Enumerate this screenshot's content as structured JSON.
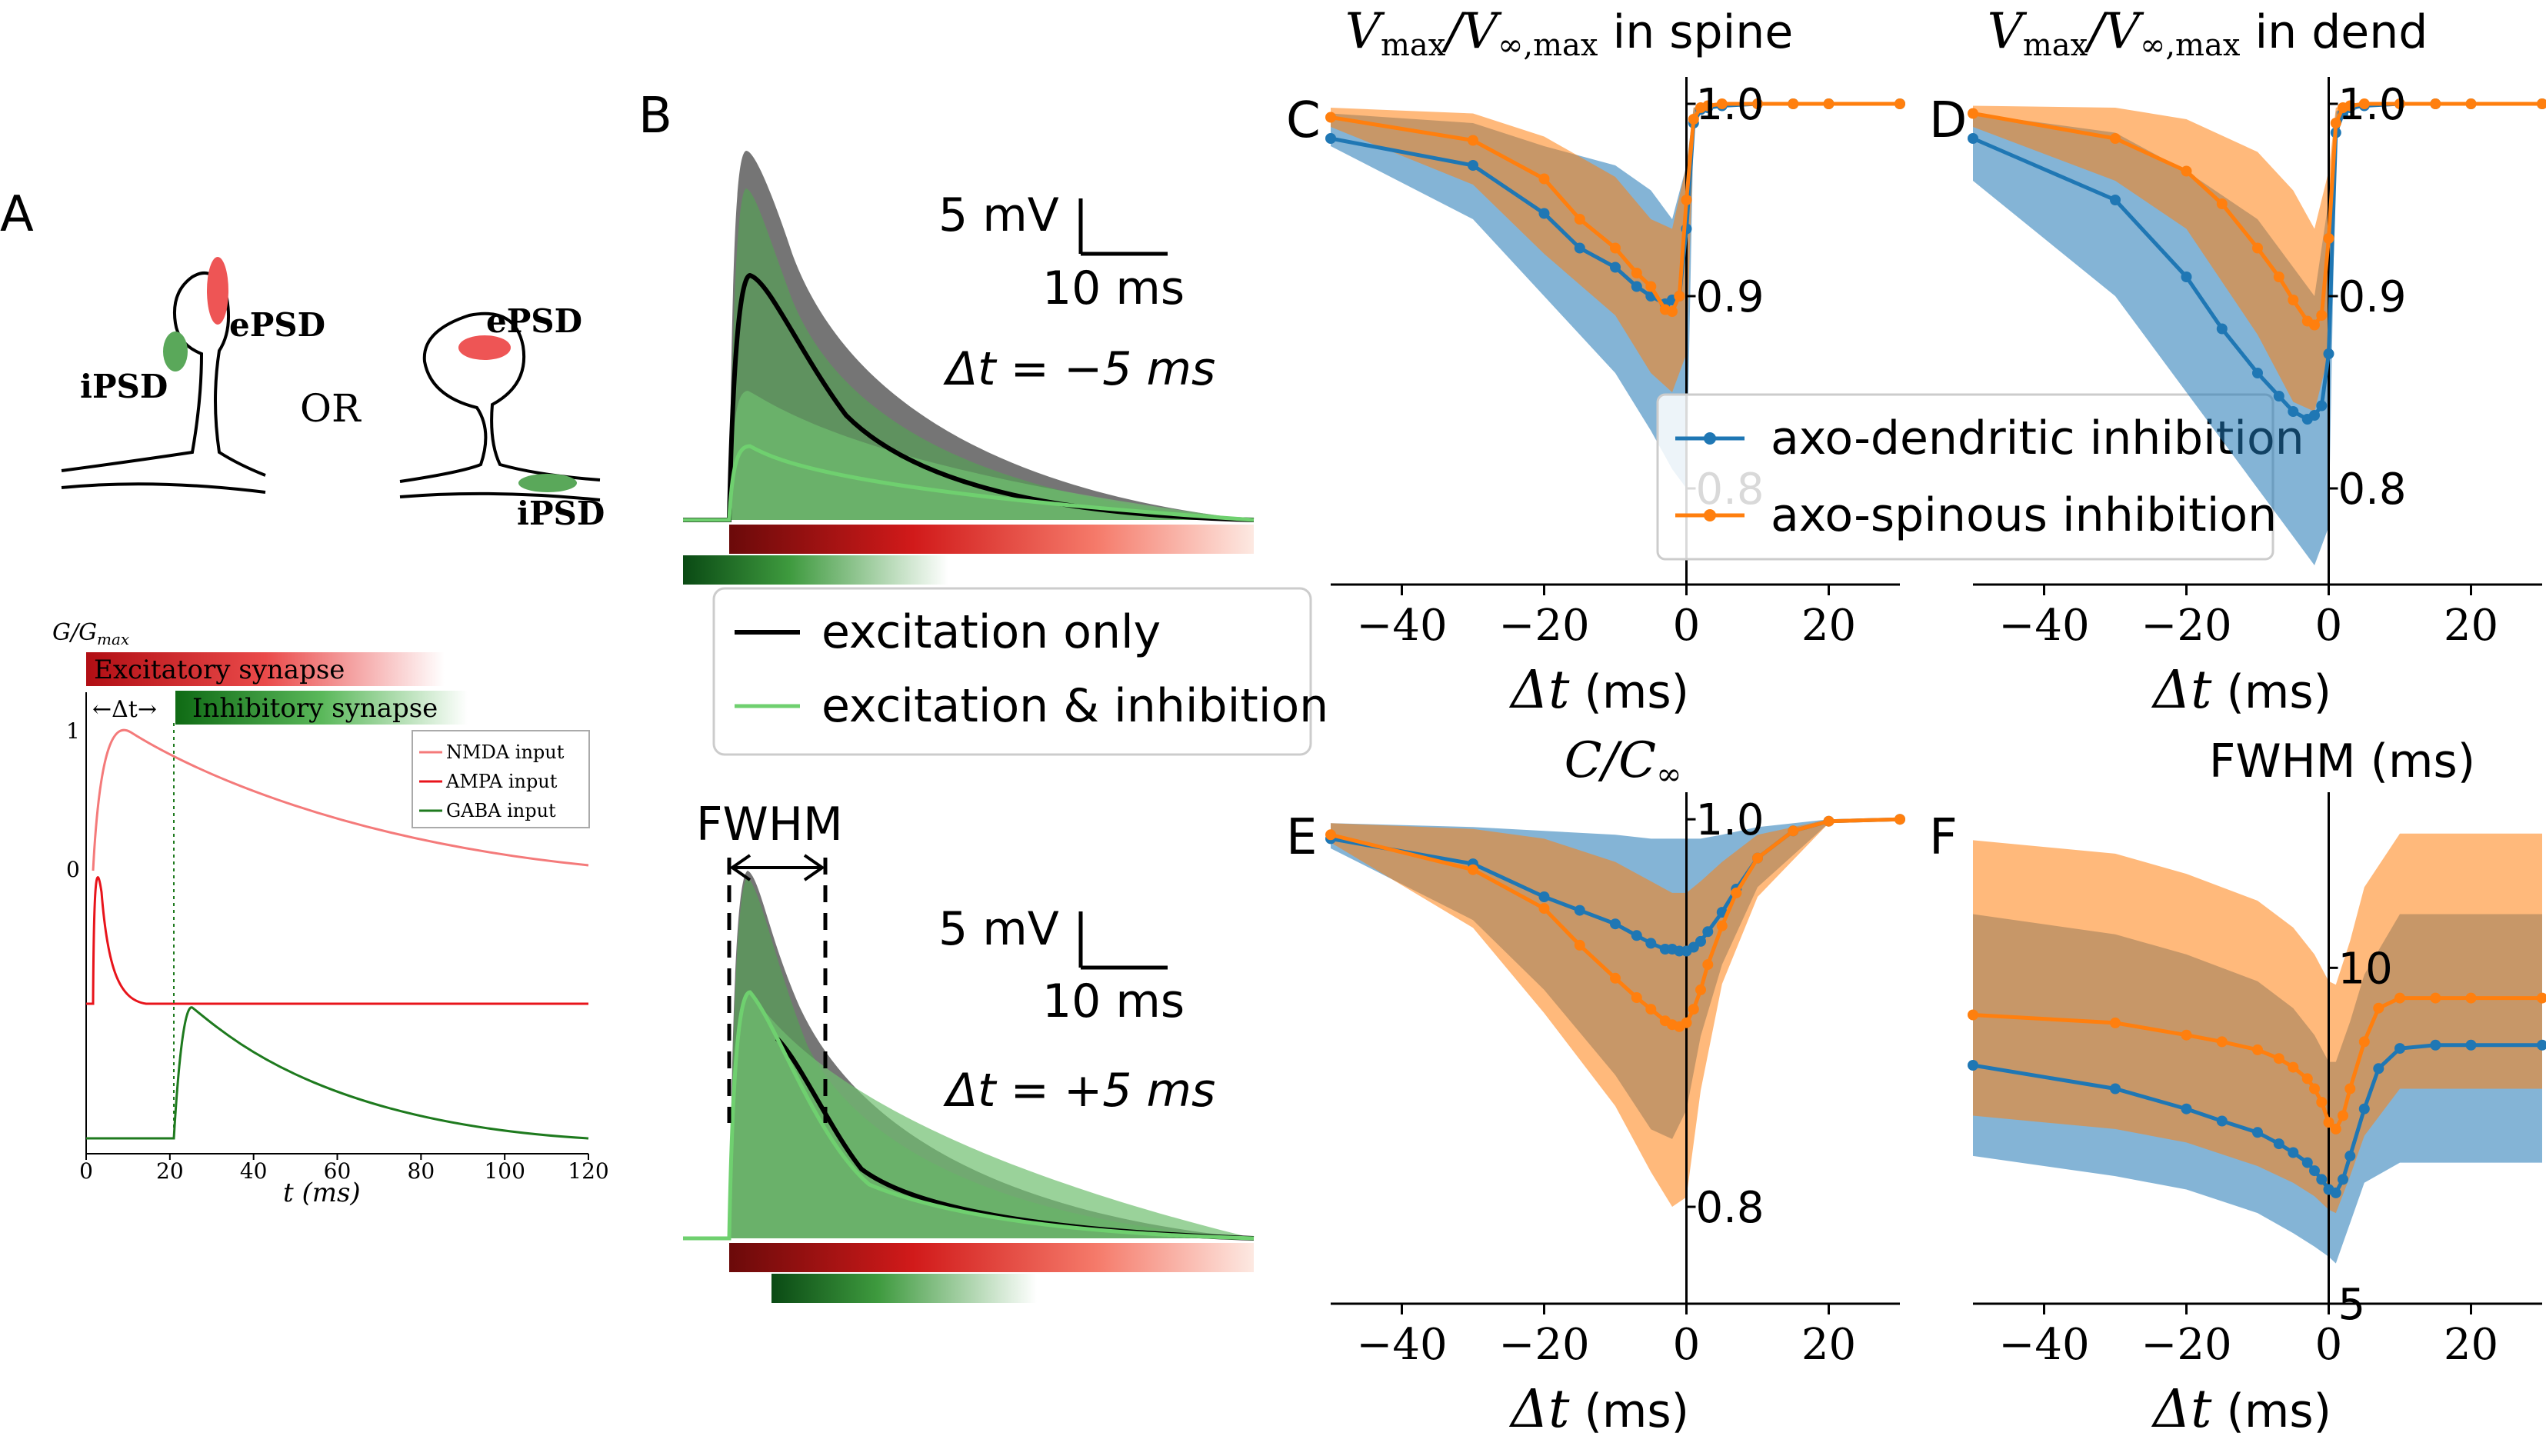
{
  "panels": {
    "A": {
      "label": "A",
      "spine_left": {
        "epsd": "ePSD",
        "ipsd": "iPSD"
      },
      "or_text": "OR",
      "spine_right": {
        "epsd": "ePSD",
        "ipsd": "iPSD"
      },
      "conductance": {
        "ylabel": "G/G",
        "ylabel_sub": "max",
        "bar_exc": "Excitatory synapse",
        "bar_inh": "Inhibitory synapse",
        "dt_label": "←Δt→",
        "yticks": [
          "1",
          "0"
        ],
        "xticks": [
          "0",
          "20",
          "40",
          "60",
          "80",
          "100",
          "120"
        ],
        "xlabel": "t (ms)",
        "legend": [
          "NMDA input",
          "AMPA input",
          "GABA input"
        ],
        "colors": {
          "nmda": "#f47a7a",
          "ampa": "#e8141b",
          "gaba": "#1e7a1e"
        }
      }
    },
    "B": {
      "label": "B",
      "top": {
        "scale_mv": "5 mV",
        "scale_ms": "10 ms",
        "dt_text": "Δt = −5 ms"
      },
      "bottom": {
        "fwhm": "FWHM",
        "scale_mv": "5 mV",
        "scale_ms": "10 ms",
        "dt_text": "Δt = +5 ms"
      },
      "legend": [
        "excitation only",
        "excitation & inhibition"
      ]
    },
    "C": {
      "label": "C"
    },
    "D": {
      "label": "D"
    },
    "E": {
      "label": "E"
    },
    "F": {
      "label": "F"
    }
  },
  "chart_data": [
    {
      "id": "C",
      "type": "line",
      "title": "V_max/V_∞,max in spine",
      "xlabel": "Δt (ms)",
      "xlim": [
        -50,
        30
      ],
      "ylim": [
        0.75,
        1.01
      ],
      "xticks": [
        -40,
        -20,
        0,
        20
      ],
      "yticks": [
        0.8,
        0.9,
        1.0
      ],
      "series": [
        {
          "name": "axo-dendritic inhibition",
          "color": "#1f77b4",
          "x": [
            -50,
            -30,
            -20,
            -15,
            -10,
            -7,
            -5,
            -3,
            -2,
            -1,
            0,
            1,
            2,
            3,
            5,
            10,
            15,
            20,
            30
          ],
          "y": [
            0.982,
            0.968,
            0.943,
            0.925,
            0.915,
            0.905,
            0.9,
            0.896,
            0.898,
            0.9,
            0.935,
            0.99,
            0.997,
            0.998,
            0.999,
            1.0,
            1.0,
            1.0,
            1.0
          ]
        },
        {
          "name": "axo-spinous inhibition",
          "color": "#ff7f0e",
          "x": [
            -50,
            -30,
            -20,
            -15,
            -10,
            -7,
            -5,
            -3,
            -2,
            -1,
            0,
            1,
            2,
            3,
            5,
            10,
            15,
            20,
            30
          ],
          "y": [
            0.993,
            0.981,
            0.961,
            0.94,
            0.925,
            0.912,
            0.905,
            0.893,
            0.892,
            0.9,
            0.95,
            0.992,
            0.998,
            0.999,
            1.0,
            1.0,
            1.0,
            1.0,
            1.0
          ]
        }
      ],
      "bands": [
        {
          "series": "axo-dendritic inhibition",
          "x": [
            -50,
            -30,
            -20,
            -10,
            -5,
            -2,
            0,
            1,
            2,
            5,
            30
          ],
          "lo": [
            0.978,
            0.94,
            0.9,
            0.86,
            0.83,
            0.81,
            0.8,
            0.99,
            0.996,
            0.999,
            1.0
          ],
          "hi": [
            0.995,
            0.99,
            0.978,
            0.968,
            0.955,
            0.94,
            0.968,
            0.998,
            0.999,
            1.0,
            1.0
          ]
        },
        {
          "series": "axo-spinous inhibition",
          "x": [
            -50,
            -30,
            -20,
            -10,
            -5,
            -2,
            0,
            1,
            2,
            5,
            30
          ],
          "lo": [
            0.988,
            0.958,
            0.922,
            0.89,
            0.86,
            0.85,
            0.87,
            0.985,
            0.995,
            0.999,
            1.0
          ],
          "hi": [
            0.998,
            0.995,
            0.983,
            0.962,
            0.94,
            0.935,
            0.968,
            0.998,
            0.999,
            1.0,
            1.0
          ]
        }
      ],
      "legend": "inside"
    },
    {
      "id": "D",
      "type": "line",
      "title": "V_max/V_∞,max in dend",
      "xlabel": "Δt (ms)",
      "xlim": [
        -50,
        30
      ],
      "ylim": [
        0.75,
        1.01
      ],
      "xticks": [
        -40,
        -20,
        0,
        20
      ],
      "yticks": [
        0.8,
        0.9,
        1.0
      ],
      "series": [
        {
          "name": "axo-dendritic inhibition",
          "color": "#1f77b4",
          "x": [
            -50,
            -30,
            -20,
            -15,
            -10,
            -7,
            -5,
            -3,
            -2,
            -1,
            0,
            1,
            2,
            3,
            5,
            10,
            15,
            20,
            30
          ],
          "y": [
            0.982,
            0.95,
            0.91,
            0.883,
            0.86,
            0.848,
            0.84,
            0.836,
            0.838,
            0.843,
            0.87,
            0.985,
            0.995,
            0.998,
            0.999,
            1.0,
            1.0,
            1.0,
            1.0
          ]
        },
        {
          "name": "axo-spinous inhibition",
          "color": "#ff7f0e",
          "x": [
            -50,
            -30,
            -20,
            -15,
            -10,
            -7,
            -5,
            -3,
            -2,
            -1,
            0,
            1,
            2,
            3,
            5,
            10,
            15,
            20,
            30
          ],
          "y": [
            0.995,
            0.982,
            0.965,
            0.948,
            0.925,
            0.91,
            0.898,
            0.887,
            0.885,
            0.89,
            0.93,
            0.99,
            0.998,
            0.999,
            1.0,
            1.0,
            1.0,
            1.0,
            1.0
          ]
        }
      ],
      "bands": [
        {
          "series": "axo-dendritic inhibition",
          "x": [
            -50,
            -30,
            -20,
            -10,
            -5,
            -2,
            0,
            1,
            2,
            5,
            30
          ],
          "lo": [
            0.96,
            0.9,
            0.85,
            0.8,
            0.775,
            0.76,
            0.78,
            0.98,
            0.994,
            0.999,
            1.0
          ],
          "hi": [
            0.995,
            0.985,
            0.965,
            0.94,
            0.915,
            0.9,
            0.95,
            0.996,
            0.999,
            1.0,
            1.0
          ]
        },
        {
          "series": "axo-spinous inhibition",
          "x": [
            -50,
            -30,
            -20,
            -10,
            -5,
            -2,
            0,
            1,
            2,
            5,
            30
          ],
          "lo": [
            0.988,
            0.96,
            0.935,
            0.88,
            0.845,
            0.84,
            0.87,
            0.985,
            0.996,
            0.999,
            1.0
          ],
          "hi": [
            0.999,
            0.998,
            0.992,
            0.975,
            0.955,
            0.935,
            0.965,
            0.998,
            0.999,
            1.0,
            1.0
          ]
        }
      ]
    },
    {
      "id": "E",
      "type": "line",
      "title": "C/C_∞",
      "xlabel": "Δt (ms)",
      "xlim": [
        -50,
        30
      ],
      "ylim": [
        0.75,
        1.01
      ],
      "xticks": [
        -40,
        -20,
        0,
        20
      ],
      "yticks": [
        0.8,
        1.0
      ],
      "series": [
        {
          "name": "axo-dendritic inhibition",
          "color": "#1f77b4",
          "x": [
            -50,
            -30,
            -20,
            -15,
            -10,
            -7,
            -5,
            -3,
            -2,
            -1,
            0,
            1,
            2,
            3,
            5,
            7,
            10,
            15,
            20,
            30
          ],
          "y": [
            0.99,
            0.977,
            0.96,
            0.953,
            0.946,
            0.94,
            0.936,
            0.933,
            0.933,
            0.932,
            0.932,
            0.934,
            0.937,
            0.942,
            0.952,
            0.964,
            0.98,
            0.994,
            0.999,
            1.0
          ]
        },
        {
          "name": "axo-spinous inhibition",
          "color": "#ff7f0e",
          "x": [
            -50,
            -30,
            -20,
            -15,
            -10,
            -7,
            -5,
            -3,
            -2,
            -1,
            0,
            1,
            2,
            3,
            5,
            7,
            10,
            15,
            20,
            30
          ],
          "y": [
            0.992,
            0.974,
            0.954,
            0.935,
            0.918,
            0.908,
            0.902,
            0.896,
            0.894,
            0.893,
            0.895,
            0.902,
            0.912,
            0.925,
            0.945,
            0.962,
            0.98,
            0.994,
            0.999,
            1.0
          ]
        }
      ],
      "bands": [
        {
          "series": "axo-dendritic inhibition",
          "x": [
            -50,
            -30,
            -20,
            -10,
            -5,
            -2,
            0,
            2,
            5,
            10,
            20,
            30
          ],
          "lo": [
            0.985,
            0.948,
            0.912,
            0.868,
            0.84,
            0.835,
            0.85,
            0.888,
            0.925,
            0.965,
            0.998,
            1.0
          ],
          "hi": [
            0.998,
            0.996,
            0.994,
            0.992,
            0.99,
            0.99,
            0.99,
            0.99,
            0.992,
            0.996,
            1.0,
            1.0
          ]
        },
        {
          "series": "axo-spinous inhibition",
          "x": [
            -50,
            -30,
            -20,
            -10,
            -5,
            -2,
            0,
            2,
            5,
            10,
            20,
            30
          ],
          "lo": [
            0.988,
            0.944,
            0.9,
            0.852,
            0.818,
            0.8,
            0.805,
            0.86,
            0.915,
            0.96,
            0.998,
            1.0
          ],
          "hi": [
            0.998,
            0.995,
            0.99,
            0.978,
            0.968,
            0.962,
            0.962,
            0.968,
            0.978,
            0.992,
            1.0,
            1.0
          ]
        }
      ]
    },
    {
      "id": "F",
      "type": "line",
      "title": "FWHM (ms)",
      "xlabel": "Δt (ms)",
      "xlim": [
        -50,
        30
      ],
      "ylim": [
        5,
        12.5
      ],
      "xticks": [
        -40,
        -20,
        0,
        20
      ],
      "yticks": [
        5,
        10
      ],
      "series": [
        {
          "name": "axo-dendritic inhibition",
          "color": "#1f77b4",
          "x": [
            -50,
            -30,
            -20,
            -15,
            -10,
            -7,
            -5,
            -3,
            -2,
            -1,
            0,
            1,
            2,
            3,
            5,
            7,
            10,
            15,
            20,
            30
          ],
          "y": [
            8.55,
            8.2,
            7.9,
            7.72,
            7.55,
            7.38,
            7.25,
            7.1,
            6.98,
            6.85,
            6.7,
            6.65,
            6.85,
            7.2,
            7.9,
            8.5,
            8.8,
            8.85,
            8.85,
            8.85
          ]
        },
        {
          "name": "axo-spinous inhibition",
          "color": "#ff7f0e",
          "x": [
            -50,
            -30,
            -20,
            -15,
            -10,
            -7,
            -5,
            -3,
            -2,
            -1,
            0,
            1,
            2,
            3,
            5,
            7,
            10,
            15,
            20,
            30
          ],
          "y": [
            9.3,
            9.18,
            9.0,
            8.9,
            8.78,
            8.65,
            8.52,
            8.35,
            8.2,
            8.0,
            7.7,
            7.6,
            7.8,
            8.2,
            8.9,
            9.4,
            9.55,
            9.55,
            9.55,
            9.55
          ]
        }
      ],
      "bands": [
        {
          "series": "axo-dendritic inhibition",
          "x": [
            -50,
            -30,
            -20,
            -10,
            -5,
            -2,
            0,
            1,
            3,
            5,
            10,
            20,
            30
          ],
          "lo": [
            7.2,
            6.9,
            6.7,
            6.35,
            6.05,
            5.85,
            5.7,
            5.6,
            6.2,
            6.8,
            7.1,
            7.1,
            7.1
          ],
          "hi": [
            10.8,
            10.5,
            10.2,
            9.8,
            9.4,
            9.0,
            8.6,
            8.6,
            9.2,
            9.9,
            10.8,
            10.8,
            10.8
          ]
        },
        {
          "series": "axo-spinous inhibition",
          "x": [
            -50,
            -30,
            -20,
            -10,
            -5,
            -2,
            0,
            1,
            3,
            5,
            10,
            20,
            30
          ],
          "lo": [
            7.8,
            7.6,
            7.4,
            7.05,
            6.8,
            6.6,
            6.4,
            6.35,
            6.9,
            7.5,
            8.2,
            8.2,
            8.2
          ],
          "hi": [
            11.9,
            11.7,
            11.4,
            11.0,
            10.6,
            10.2,
            9.8,
            9.75,
            10.4,
            11.2,
            12.0,
            12.0,
            12.0
          ]
        }
      ]
    }
  ]
}
